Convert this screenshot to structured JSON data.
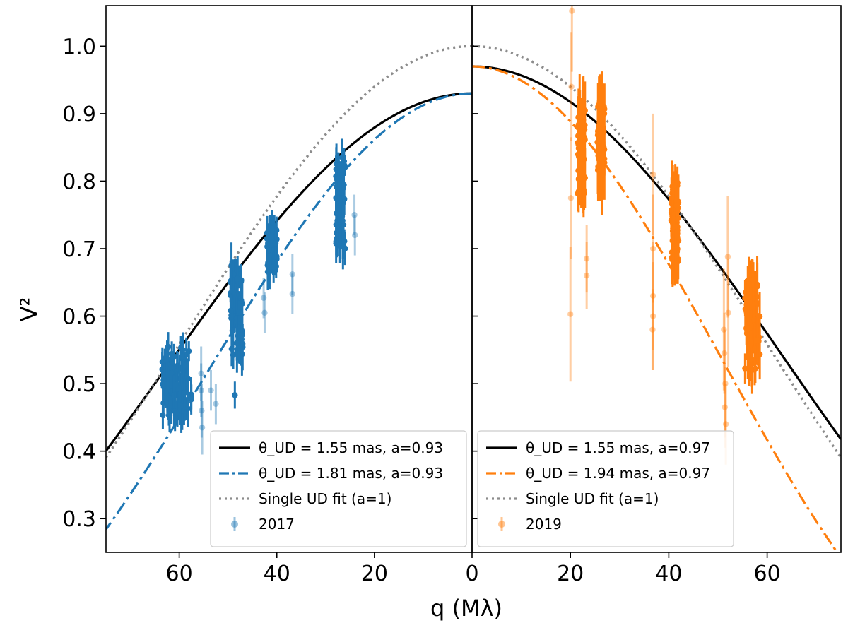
{
  "chart_data": {
    "type": "scatter",
    "ylabel": "V²",
    "xlabel": "q (Mλ)",
    "ylim": [
      0.25,
      1.06
    ],
    "yticks": [
      "0.3",
      "0.4",
      "0.5",
      "0.6",
      "0.7",
      "0.8",
      "0.9",
      "1.0"
    ],
    "panels": [
      {
        "name": "2017",
        "xlim": [
          75,
          0
        ],
        "xticks": [
          "60",
          "40",
          "20"
        ],
        "legend_position": "lower-right",
        "color": "#1f77b4",
        "curves": [
          {
            "label": "θ_UD = 1.55 mas, a=0.93",
            "style": "solid",
            "color": "#000000",
            "theta_mas": 1.55,
            "a": 0.93
          },
          {
            "label": "θ_UD = 1.81 mas, a=0.93",
            "style": "dashdot",
            "color": "#1f77b4",
            "theta_mas": 1.81,
            "a": 0.93
          },
          {
            "label": "Single UD fit (a=1)",
            "style": "dotted",
            "color": "#8c8c8c",
            "theta_mas": 1.63,
            "a": 1.0
          }
        ],
        "data_label": "2017",
        "clusters": [
          {
            "q_range": [
              57.5,
              63.5
            ],
            "v2_range": [
              0.45,
              0.555
            ],
            "n": 90,
            "err": 0.022,
            "faint": false
          },
          {
            "q_range": [
              47,
              49.5
            ],
            "v2_range": [
              0.54,
              0.68
            ],
            "n": 60,
            "err": 0.025,
            "faint": false
          },
          {
            "q_range": [
              40,
              42
            ],
            "v2_range": [
              0.665,
              0.73
            ],
            "n": 50,
            "err": 0.02,
            "faint": false
          },
          {
            "q_range": [
              26,
              28
            ],
            "v2_range": [
              0.7,
              0.84
            ],
            "n": 60,
            "err": 0.025,
            "faint": false
          }
        ],
        "points": [
          {
            "q": 55.5,
            "v2": 0.515,
            "err": 0.04,
            "faint": true
          },
          {
            "q": 55.5,
            "v2": 0.49,
            "err": 0.04,
            "faint": true
          },
          {
            "q": 55.4,
            "v2": 0.46,
            "err": 0.04,
            "faint": true
          },
          {
            "q": 55.3,
            "v2": 0.435,
            "err": 0.04,
            "faint": true
          },
          {
            "q": 53.5,
            "v2": 0.49,
            "err": 0.03,
            "faint": true
          },
          {
            "q": 52.5,
            "v2": 0.47,
            "err": 0.03,
            "faint": true
          },
          {
            "q": 48.6,
            "v2": 0.483,
            "err": 0.02,
            "faint": false
          },
          {
            "q": 42.7,
            "v2": 0.627,
            "err": 0.03,
            "faint": true
          },
          {
            "q": 42.5,
            "v2": 0.605,
            "err": 0.03,
            "faint": true
          },
          {
            "q": 36.8,
            "v2": 0.662,
            "err": 0.03,
            "faint": true
          },
          {
            "q": 36.8,
            "v2": 0.633,
            "err": 0.03,
            "faint": true
          },
          {
            "q": 24.1,
            "v2": 0.75,
            "err": 0.03,
            "faint": true
          },
          {
            "q": 24.0,
            "v2": 0.72,
            "err": 0.03,
            "faint": true
          }
        ]
      },
      {
        "name": "2019",
        "xlim": [
          0,
          75
        ],
        "xticks": [
          "0",
          "20",
          "40",
          "60"
        ],
        "legend_position": "lower-left",
        "color": "#ff7f0e",
        "curves": [
          {
            "label": "θ_UD = 1.55 mas, a=0.97",
            "style": "solid",
            "color": "#000000",
            "theta_mas": 1.55,
            "a": 0.97
          },
          {
            "label": "θ_UD = 1.94 mas, a=0.97",
            "style": "dashdot",
            "color": "#ff7f0e",
            "theta_mas": 1.94,
            "a": 0.97
          },
          {
            "label": "Single UD fit (a=1)",
            "style": "dotted",
            "color": "#8c8c8c",
            "theta_mas": 1.63,
            "a": 1.0
          }
        ],
        "data_label": "2019",
        "clusters": [
          {
            "q_range": [
              21.5,
              23
            ],
            "v2_range": [
              0.78,
              0.91
            ],
            "n": 60,
            "err": 0.04,
            "faint": false
          },
          {
            "q_range": [
              25.5,
              27
            ],
            "v2_range": [
              0.79,
              0.92
            ],
            "n": 60,
            "err": 0.04,
            "faint": false
          },
          {
            "q_range": [
              40.5,
              42
            ],
            "v2_range": [
              0.68,
              0.8
            ],
            "n": 60,
            "err": 0.03,
            "faint": false
          },
          {
            "q_range": [
              55.5,
              58.5
            ],
            "v2_range": [
              0.52,
              0.66
            ],
            "n": 70,
            "err": 0.03,
            "faint": false
          }
        ],
        "points": [
          {
            "q": 20.3,
            "v2": 1.052,
            "err": 0.09,
            "faint": true
          },
          {
            "q": 20.2,
            "v2": 0.94,
            "err": 0.08,
            "faint": true
          },
          {
            "q": 20.1,
            "v2": 0.775,
            "err": 0.09,
            "faint": true
          },
          {
            "q": 20.0,
            "v2": 0.603,
            "err": 0.1,
            "faint": true
          },
          {
            "q": 23.3,
            "v2": 0.685,
            "err": 0.05,
            "faint": true
          },
          {
            "q": 23.3,
            "v2": 0.66,
            "err": 0.05,
            "faint": true
          },
          {
            "q": 36.8,
            "v2": 0.81,
            "err": 0.09,
            "faint": true
          },
          {
            "q": 36.8,
            "v2": 0.7,
            "err": 0.08,
            "faint": true
          },
          {
            "q": 36.8,
            "v2": 0.63,
            "err": 0.08,
            "faint": true
          },
          {
            "q": 36.8,
            "v2": 0.6,
            "err": 0.08,
            "faint": true
          },
          {
            "q": 36.7,
            "v2": 0.58,
            "err": 0.06,
            "faint": true
          },
          {
            "q": 51.2,
            "v2": 0.58,
            "err": 0.09,
            "faint": true
          },
          {
            "q": 51.3,
            "v2": 0.545,
            "err": 0.06,
            "faint": true
          },
          {
            "q": 51.5,
            "v2": 0.5,
            "err": 0.08,
            "faint": true
          },
          {
            "q": 51.4,
            "v2": 0.465,
            "err": 0.06,
            "faint": true
          },
          {
            "q": 51.6,
            "v2": 0.44,
            "err": 0.06,
            "faint": true
          },
          {
            "q": 52.0,
            "v2": 0.688,
            "err": 0.09,
            "faint": true
          },
          {
            "q": 52.1,
            "v2": 0.605,
            "err": 0.08,
            "faint": true
          }
        ]
      }
    ]
  }
}
